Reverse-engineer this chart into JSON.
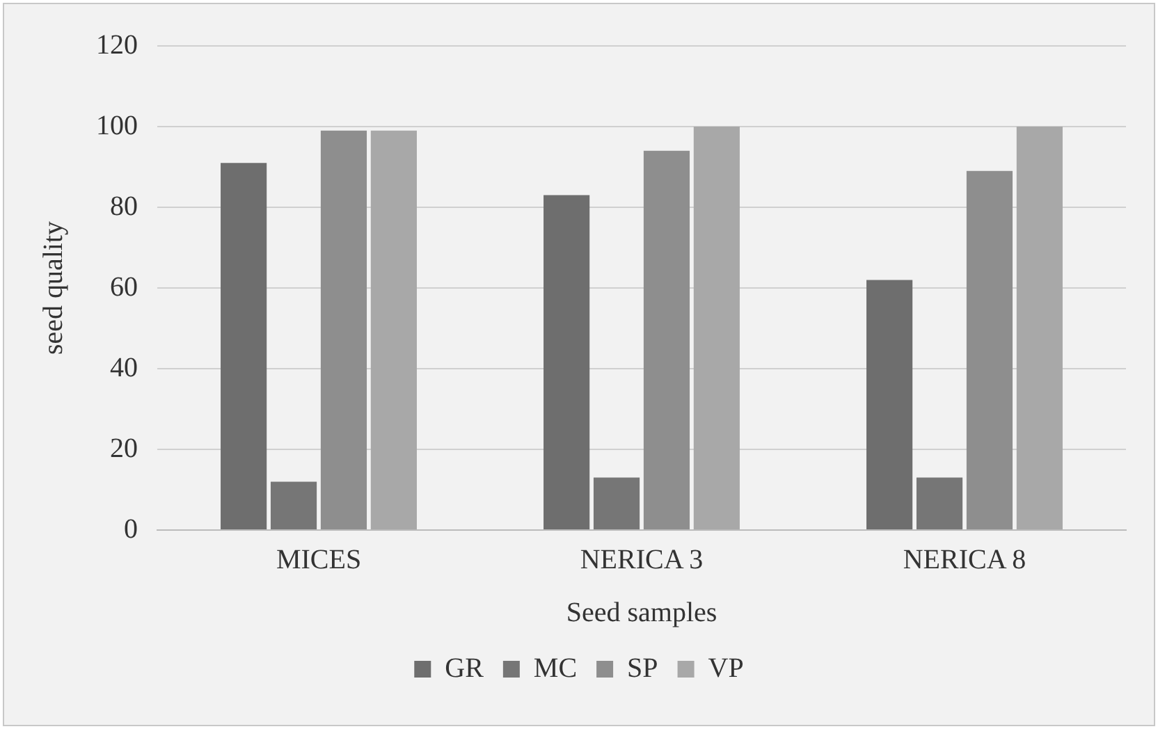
{
  "chart_data": {
    "type": "bar",
    "xlabel": "Seed samples",
    "ylabel": "seed quality",
    "categories": [
      "MICES",
      "NERICA 3",
      "NERICA 8"
    ],
    "series": [
      {
        "name": "GR",
        "color": "#6e6e6e",
        "values": [
          91,
          83,
          62
        ]
      },
      {
        "name": "MC",
        "color": "#767676",
        "values": [
          12,
          13,
          13
        ]
      },
      {
        "name": "SP",
        "color": "#8e8e8e",
        "values": [
          99,
          94,
          89
        ]
      },
      {
        "name": "VP",
        "color": "#a8a8a8",
        "values": [
          99,
          100,
          100
        ]
      }
    ],
    "ylim": [
      0,
      120
    ],
    "yticks": [
      0,
      20,
      40,
      60,
      80,
      100,
      120
    ],
    "grid": "y",
    "legend": "bottom"
  }
}
